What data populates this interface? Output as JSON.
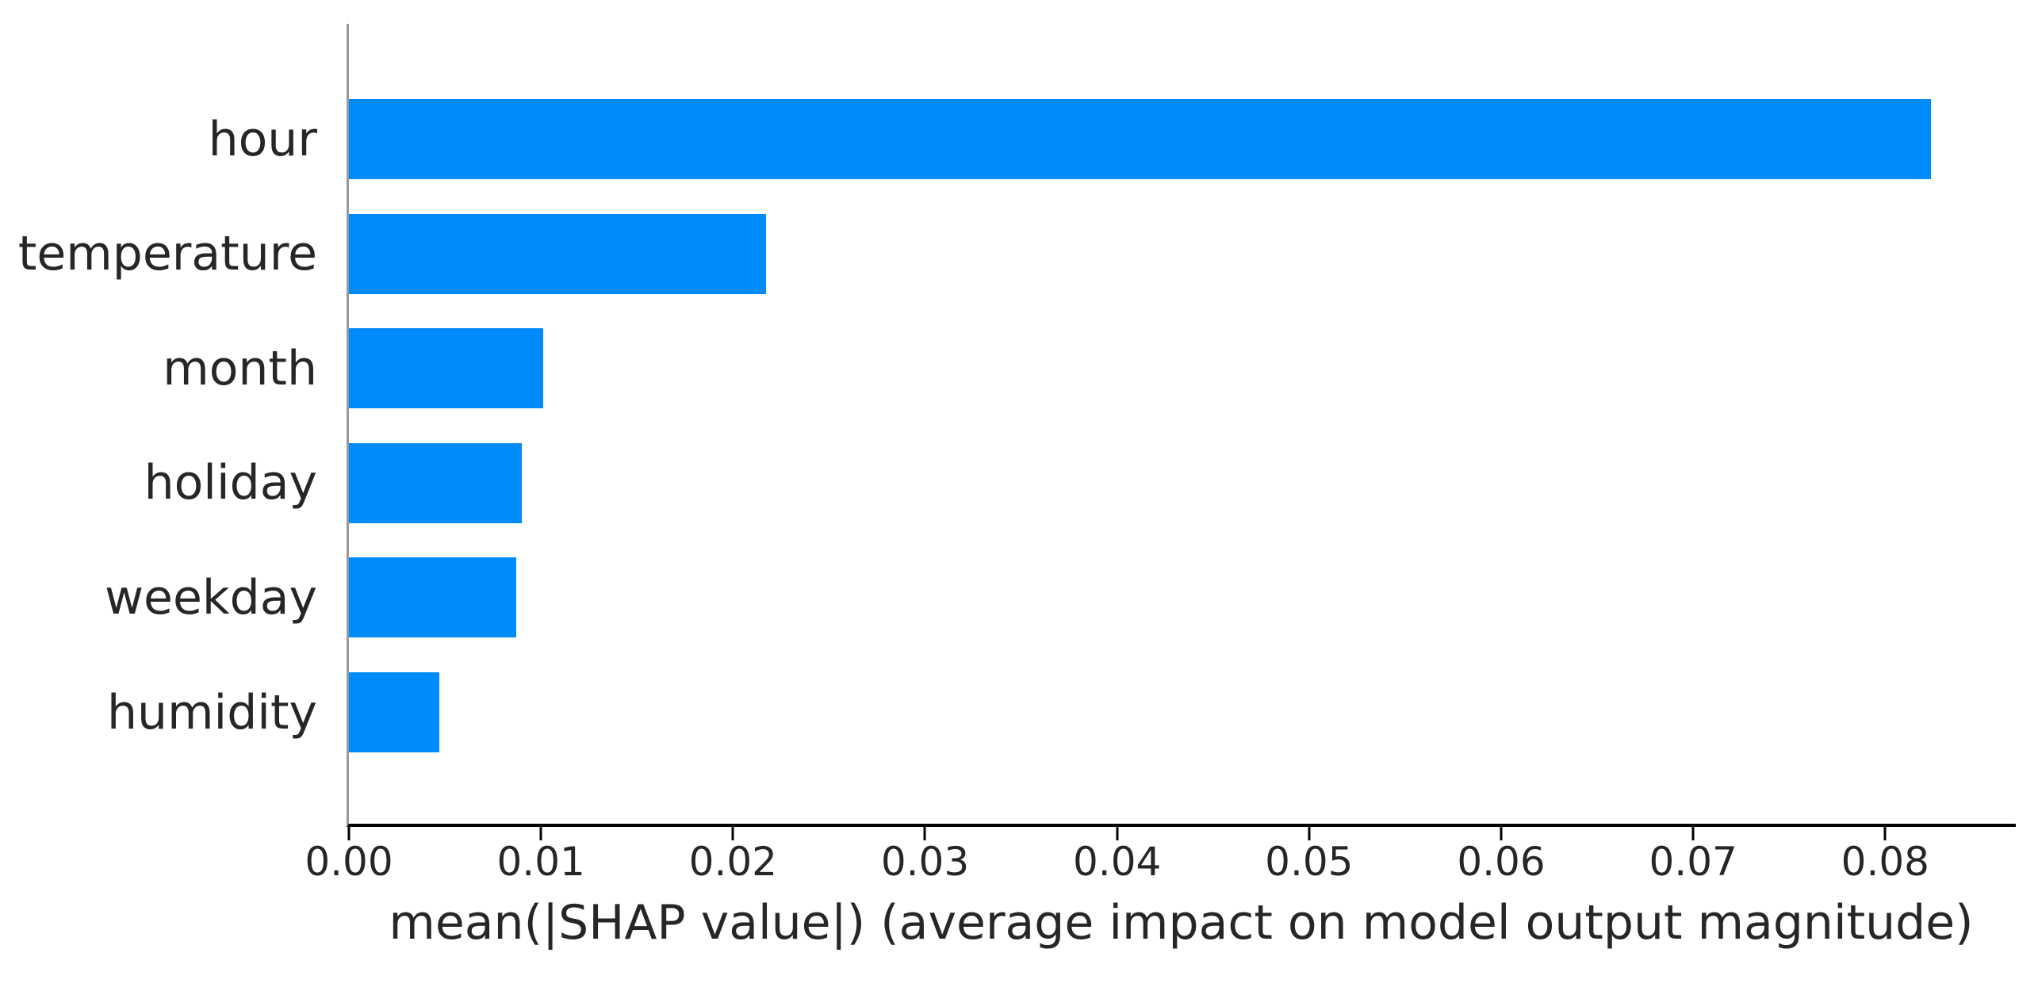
{
  "chart_data": {
    "type": "bar",
    "orientation": "horizontal",
    "title": "",
    "categories": [
      "hour",
      "temperature",
      "month",
      "holiday",
      "weekday",
      "humidity"
    ],
    "values": [
      0.0824,
      0.0217,
      0.0101,
      0.009,
      0.0087,
      0.0047
    ],
    "xlabel": "mean(|SHAP value|) (average impact on model output magnitude)",
    "ylabel": "",
    "xtick_labels": [
      "0.00",
      "0.01",
      "0.02",
      "0.03",
      "0.04",
      "0.05",
      "0.06",
      "0.07",
      "0.08"
    ],
    "xticks": [
      0.0,
      0.01,
      0.02,
      0.03,
      0.04,
      0.05,
      0.06,
      0.07,
      0.08
    ],
    "xlim": [
      0,
      0.0868
    ],
    "grid": false,
    "legend": null,
    "colors": {
      "bar": "#008bfb",
      "left_spine": "#999999",
      "bottom_spine": "#000000",
      "text": "#262626",
      "background": "#ffffff"
    }
  }
}
